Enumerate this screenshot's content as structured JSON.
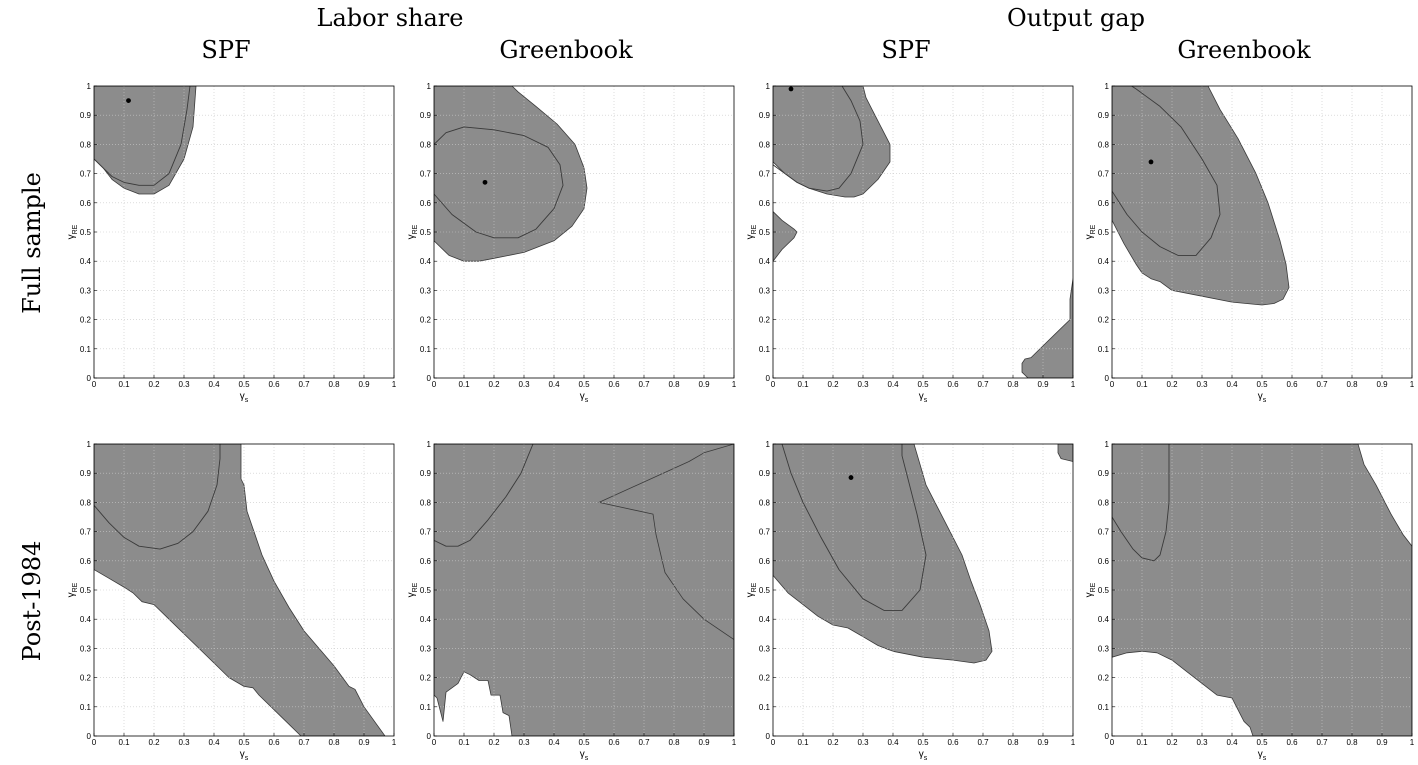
{
  "group_headers": [
    "Labor share",
    "Output gap"
  ],
  "column_headers": [
    "SPF",
    "Greenbook",
    "SPF",
    "Greenbook"
  ],
  "row_headers": [
    "Full sample",
    "Post-1984"
  ],
  "colors": {
    "region_fill": "#8c8c8c",
    "region_stroke": "#3a3a3a",
    "grid": "#c8c8c8",
    "axes": "#000000",
    "point": "#000000"
  },
  "axes_common": {
    "xlabel_main": "γ",
    "xlabel_sub": "s",
    "ylabel_main": "γ",
    "ylabel_sub": "RE",
    "xlim": [
      0,
      1
    ],
    "ylim": [
      0,
      1
    ],
    "tick_values": [
      0,
      0.1,
      0.2,
      0.3,
      0.4,
      0.5,
      0.6,
      0.7,
      0.8,
      0.9,
      1
    ],
    "tick_labels": [
      "0",
      "0.1",
      "0.2",
      "0.3",
      "0.4",
      "0.5",
      "0.6",
      "0.7",
      "0.8",
      "0.9",
      "1"
    ],
    "grid": true
  },
  "chart_data": [
    {
      "type": "area",
      "row": 0,
      "col": 0,
      "regions": [
        [
          [
            0,
            0.75
          ],
          [
            0.03,
            0.72
          ],
          [
            0.06,
            0.68
          ],
          [
            0.1,
            0.65
          ],
          [
            0.15,
            0.63
          ],
          [
            0.2,
            0.63
          ],
          [
            0.25,
            0.66
          ],
          [
            0.3,
            0.75
          ],
          [
            0.33,
            0.86
          ],
          [
            0.34,
            1
          ],
          [
            0,
            1
          ]
        ]
      ],
      "ellipse": [
        [
          0,
          0.75
        ],
        [
          0.03,
          0.72
        ],
        [
          0.06,
          0.69
        ],
        [
          0.1,
          0.67
        ],
        [
          0.15,
          0.66
        ],
        [
          0.2,
          0.66
        ],
        [
          0.25,
          0.7
        ],
        [
          0.29,
          0.8
        ],
        [
          0.31,
          0.92
        ],
        [
          0.32,
          1
        ]
      ],
      "point": [
        0.115,
        0.95
      ]
    },
    {
      "type": "area",
      "row": 0,
      "col": 1,
      "regions": [
        [
          [
            0,
            0.47
          ],
          [
            0.05,
            0.42
          ],
          [
            0.1,
            0.4
          ],
          [
            0.15,
            0.4
          ],
          [
            0.2,
            0.41
          ],
          [
            0.3,
            0.43
          ],
          [
            0.4,
            0.47
          ],
          [
            0.46,
            0.52
          ],
          [
            0.5,
            0.58
          ],
          [
            0.51,
            0.65
          ],
          [
            0.5,
            0.72
          ],
          [
            0.47,
            0.8
          ],
          [
            0.41,
            0.87
          ],
          [
            0.34,
            0.93
          ],
          [
            0.28,
            0.98
          ],
          [
            0.26,
            1
          ],
          [
            0,
            1
          ]
        ]
      ],
      "ellipse": [
        [
          0,
          0.8
        ],
        [
          0.04,
          0.84
        ],
        [
          0.1,
          0.86
        ],
        [
          0.2,
          0.85
        ],
        [
          0.3,
          0.83
        ],
        [
          0.38,
          0.79
        ],
        [
          0.42,
          0.73
        ],
        [
          0.43,
          0.66
        ],
        [
          0.4,
          0.58
        ],
        [
          0.34,
          0.51
        ],
        [
          0.28,
          0.48
        ],
        [
          0.2,
          0.48
        ],
        [
          0.14,
          0.5
        ],
        [
          0.06,
          0.56
        ],
        [
          0,
          0.63
        ]
      ],
      "point": [
        0.17,
        0.67
      ]
    },
    {
      "type": "area",
      "row": 0,
      "col": 2,
      "regions": [
        [
          [
            0,
            0.74
          ],
          [
            0.04,
            0.7
          ],
          [
            0.08,
            0.67
          ],
          [
            0.12,
            0.65
          ],
          [
            0.18,
            0.63
          ],
          [
            0.24,
            0.62
          ],
          [
            0.27,
            0.62
          ],
          [
            0.3,
            0.63
          ],
          [
            0.35,
            0.68
          ],
          [
            0.39,
            0.74
          ],
          [
            0.39,
            0.8
          ],
          [
            0.36,
            0.86
          ],
          [
            0.33,
            0.92
          ],
          [
            0.31,
            0.96
          ],
          [
            0.3,
            1
          ],
          [
            0,
            1
          ]
        ],
        [
          [
            0,
            0.4
          ],
          [
            0.03,
            0.44
          ],
          [
            0.07,
            0.48
          ],
          [
            0.08,
            0.5
          ],
          [
            0.07,
            0.51
          ],
          [
            0.03,
            0.54
          ],
          [
            0,
            0.57
          ]
        ],
        [
          [
            0.83,
            0.05
          ],
          [
            0.84,
            0.065
          ],
          [
            0.86,
            0.07
          ],
          [
            0.9,
            0.11
          ],
          [
            0.94,
            0.15
          ],
          [
            0.99,
            0.2
          ],
          [
            0.99,
            0.27
          ],
          [
            1,
            0.34
          ],
          [
            1,
            0
          ],
          [
            0.85,
            0
          ],
          [
            0.83,
            0.02
          ]
        ]
      ],
      "ellipse": [
        [
          0,
          0.73
        ],
        [
          0.04,
          0.7
        ],
        [
          0.08,
          0.67
        ],
        [
          0.12,
          0.65
        ],
        [
          0.18,
          0.64
        ],
        [
          0.22,
          0.65
        ],
        [
          0.26,
          0.7
        ],
        [
          0.3,
          0.8
        ],
        [
          0.29,
          0.88
        ],
        [
          0.26,
          0.95
        ],
        [
          0.23,
          1
        ]
      ],
      "point": [
        0.06,
        0.99
      ]
    },
    {
      "type": "area",
      "row": 0,
      "col": 3,
      "regions": [
        [
          [
            0,
            0.54
          ],
          [
            0.04,
            0.46
          ],
          [
            0.08,
            0.39
          ],
          [
            0.1,
            0.36
          ],
          [
            0.13,
            0.34
          ],
          [
            0.16,
            0.33
          ],
          [
            0.2,
            0.3
          ],
          [
            0.3,
            0.28
          ],
          [
            0.4,
            0.26
          ],
          [
            0.5,
            0.25
          ],
          [
            0.54,
            0.255
          ],
          [
            0.57,
            0.27
          ],
          [
            0.59,
            0.31
          ],
          [
            0.58,
            0.39
          ],
          [
            0.56,
            0.47
          ],
          [
            0.52,
            0.6
          ],
          [
            0.48,
            0.7
          ],
          [
            0.42,
            0.82
          ],
          [
            0.36,
            0.92
          ],
          [
            0.32,
            1
          ],
          [
            0,
            1
          ]
        ]
      ],
      "ellipse": [
        [
          0,
          0.64
        ],
        [
          0.05,
          0.56
        ],
        [
          0.1,
          0.5
        ],
        [
          0.16,
          0.45
        ],
        [
          0.22,
          0.42
        ],
        [
          0.28,
          0.42
        ],
        [
          0.33,
          0.48
        ],
        [
          0.36,
          0.56
        ],
        [
          0.35,
          0.66
        ],
        [
          0.3,
          0.75
        ],
        [
          0.23,
          0.86
        ],
        [
          0.16,
          0.93
        ],
        [
          0.08,
          0.99
        ],
        [
          0.065,
          1
        ]
      ],
      "point": [
        0.13,
        0.74
      ]
    },
    {
      "type": "area",
      "row": 1,
      "col": 0,
      "regions": [
        [
          [
            0,
            0.57
          ],
          [
            0.05,
            0.54
          ],
          [
            0.1,
            0.51
          ],
          [
            0.13,
            0.49
          ],
          [
            0.16,
            0.46
          ],
          [
            0.2,
            0.45
          ],
          [
            0.25,
            0.4
          ],
          [
            0.3,
            0.35
          ],
          [
            0.35,
            0.3
          ],
          [
            0.4,
            0.25
          ],
          [
            0.45,
            0.2
          ],
          [
            0.5,
            0.17
          ],
          [
            0.53,
            0.165
          ],
          [
            0.55,
            0.14
          ],
          [
            0.6,
            0.09
          ],
          [
            0.65,
            0.04
          ],
          [
            0.69,
            0
          ],
          [
            0.97,
            0
          ],
          [
            0.9,
            0.1
          ],
          [
            0.87,
            0.16
          ],
          [
            0.85,
            0.17
          ],
          [
            0.8,
            0.24
          ],
          [
            0.75,
            0.3
          ],
          [
            0.7,
            0.36
          ],
          [
            0.65,
            0.44
          ],
          [
            0.6,
            0.53
          ],
          [
            0.56,
            0.62
          ],
          [
            0.53,
            0.71
          ],
          [
            0.51,
            0.77
          ],
          [
            0.5,
            0.86
          ],
          [
            0.49,
            0.88
          ],
          [
            0.49,
            0.93
          ],
          [
            0.49,
            1
          ],
          [
            0,
            1
          ]
        ]
      ],
      "ellipse": [
        [
          0,
          0.79
        ],
        [
          0.05,
          0.73
        ],
        [
          0.1,
          0.68
        ],
        [
          0.15,
          0.65
        ],
        [
          0.22,
          0.64
        ],
        [
          0.28,
          0.66
        ],
        [
          0.33,
          0.7
        ],
        [
          0.38,
          0.77
        ],
        [
          0.41,
          0.86
        ],
        [
          0.42,
          0.95
        ],
        [
          0.42,
          1
        ]
      ],
      "point": null
    },
    {
      "type": "area",
      "row": 1,
      "col": 1,
      "regions": [
        [
          [
            0,
            1
          ],
          [
            1,
            1
          ],
          [
            1,
            0.33
          ],
          [
            0.9,
            0.4
          ],
          [
            0.83,
            0.47
          ],
          [
            0.77,
            0.56
          ],
          [
            0.74,
            0.69
          ],
          [
            0.73,
            0.76
          ],
          [
            0.55,
            0.8
          ],
          [
            0.85,
            0.94
          ],
          [
            0.9,
            0.97
          ],
          [
            1,
            1
          ],
          [
            1,
            0
          ],
          [
            0.26,
            0
          ],
          [
            0.25,
            0.07
          ],
          [
            0.23,
            0.08
          ],
          [
            0.22,
            0.14
          ],
          [
            0.19,
            0.14
          ],
          [
            0.18,
            0.19
          ],
          [
            0.15,
            0.19
          ],
          [
            0.12,
            0.21
          ],
          [
            0.1,
            0.22
          ],
          [
            0.08,
            0.18
          ],
          [
            0.04,
            0.15
          ],
          [
            0.03,
            0.05
          ],
          [
            0.01,
            0.13
          ],
          [
            0,
            0.14
          ]
        ]
      ],
      "ellipse": [
        [
          0,
          0.67
        ],
        [
          0.04,
          0.65
        ],
        [
          0.08,
          0.65
        ],
        [
          0.12,
          0.67
        ],
        [
          0.18,
          0.74
        ],
        [
          0.24,
          0.82
        ],
        [
          0.29,
          0.9
        ],
        [
          0.31,
          0.95
        ],
        [
          0.33,
          1
        ]
      ],
      "point": null
    },
    {
      "type": "area",
      "row": 1,
      "col": 2,
      "regions": [
        [
          [
            0,
            0.55
          ],
          [
            0.05,
            0.49
          ],
          [
            0.1,
            0.45
          ],
          [
            0.15,
            0.41
          ],
          [
            0.2,
            0.38
          ],
          [
            0.25,
            0.37
          ],
          [
            0.3,
            0.34
          ],
          [
            0.35,
            0.31
          ],
          [
            0.4,
            0.29
          ],
          [
            0.5,
            0.27
          ],
          [
            0.6,
            0.26
          ],
          [
            0.67,
            0.25
          ],
          [
            0.71,
            0.26
          ],
          [
            0.73,
            0.29
          ],
          [
            0.72,
            0.36
          ],
          [
            0.69,
            0.45
          ],
          [
            0.66,
            0.53
          ],
          [
            0.63,
            0.62
          ],
          [
            0.59,
            0.7
          ],
          [
            0.54,
            0.8
          ],
          [
            0.51,
            0.86
          ],
          [
            0.49,
            0.93
          ],
          [
            0.47,
            1
          ],
          [
            0,
            1
          ]
        ],
        [
          [
            0.95,
            1
          ],
          [
            1,
            1
          ],
          [
            1,
            0.94
          ],
          [
            0.96,
            0.95
          ],
          [
            0.95,
            0.97
          ]
        ]
      ],
      "ellipse": [
        [
          0.03,
          1
        ],
        [
          0.06,
          0.9
        ],
        [
          0.1,
          0.8
        ],
        [
          0.16,
          0.68
        ],
        [
          0.22,
          0.57
        ],
        [
          0.3,
          0.47
        ],
        [
          0.37,
          0.43
        ],
        [
          0.43,
          0.43
        ],
        [
          0.49,
          0.5
        ],
        [
          0.51,
          0.62
        ],
        [
          0.48,
          0.76
        ],
        [
          0.45,
          0.88
        ],
        [
          0.43,
          0.96
        ],
        [
          0.43,
          1
        ]
      ],
      "point": [
        0.26,
        0.885
      ]
    },
    {
      "type": "area",
      "row": 1,
      "col": 3,
      "regions": [
        [
          [
            0,
            0.27
          ],
          [
            0.05,
            0.285
          ],
          [
            0.1,
            0.29
          ],
          [
            0.15,
            0.285
          ],
          [
            0.2,
            0.26
          ],
          [
            0.25,
            0.22
          ],
          [
            0.3,
            0.18
          ],
          [
            0.35,
            0.14
          ],
          [
            0.4,
            0.13
          ],
          [
            0.41,
            0.11
          ],
          [
            0.44,
            0.05
          ],
          [
            0.46,
            0.03
          ],
          [
            0.47,
            0
          ],
          [
            1,
            0
          ],
          [
            1,
            0.65
          ],
          [
            0.97,
            0.69
          ],
          [
            0.93,
            0.76
          ],
          [
            0.88,
            0.86
          ],
          [
            0.84,
            0.93
          ],
          [
            0.82,
            1
          ],
          [
            0,
            1
          ]
        ]
      ],
      "ellipse": [
        [
          0,
          0.75
        ],
        [
          0.03,
          0.7
        ],
        [
          0.07,
          0.64
        ],
        [
          0.1,
          0.61
        ],
        [
          0.14,
          0.6
        ],
        [
          0.16,
          0.62
        ],
        [
          0.18,
          0.7
        ],
        [
          0.19,
          0.8
        ],
        [
          0.19,
          0.92
        ],
        [
          0.19,
          1
        ]
      ],
      "point": null
    }
  ]
}
